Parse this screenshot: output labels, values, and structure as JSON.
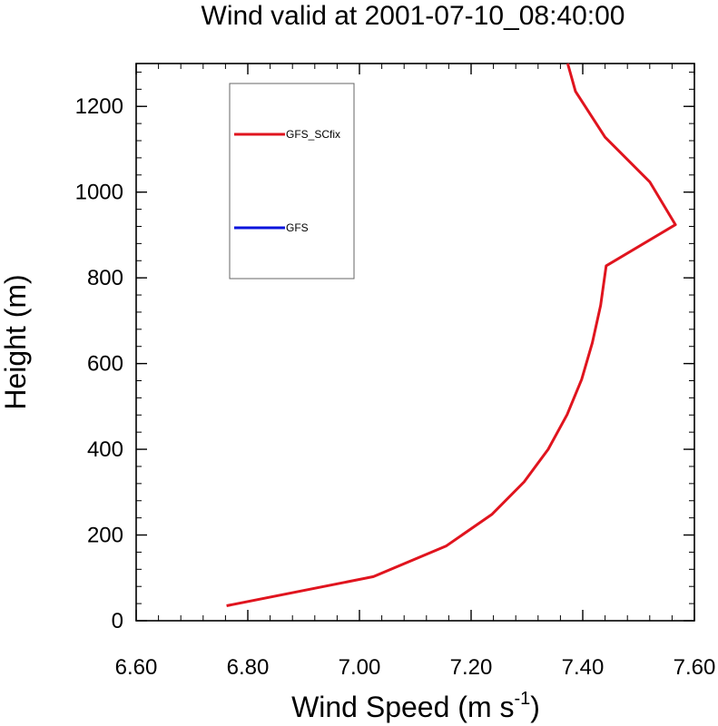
{
  "chart_data": {
    "type": "line",
    "title": "Wind valid at 2001-07-10_08:40:00",
    "xlabel": "Wind Speed (m s",
    "xlabel_sup": "-1",
    "xlabel_end": ")",
    "ylabel": "Height (m)",
    "xlim": [
      6.6,
      7.6
    ],
    "ylim": [
      0,
      1300
    ],
    "xticks": [
      "6.60",
      "6.80",
      "7.00",
      "7.20",
      "7.40",
      "7.60"
    ],
    "yticks": [
      "0",
      "200",
      "400",
      "600",
      "800",
      "1000",
      "1200"
    ],
    "legend_placement": "top-left",
    "series": [
      {
        "name": "GFS_SCfix",
        "color": "#e0141e",
        "points": [
          {
            "x": 6.762,
            "y": 35
          },
          {
            "x": 7.025,
            "y": 103
          },
          {
            "x": 7.155,
            "y": 174
          },
          {
            "x": 7.237,
            "y": 248
          },
          {
            "x": 7.295,
            "y": 324
          },
          {
            "x": 7.338,
            "y": 400
          },
          {
            "x": 7.372,
            "y": 481
          },
          {
            "x": 7.398,
            "y": 563
          },
          {
            "x": 7.417,
            "y": 648
          },
          {
            "x": 7.432,
            "y": 736
          },
          {
            "x": 7.442,
            "y": 828
          },
          {
            "x": 7.566,
            "y": 924
          },
          {
            "x": 7.52,
            "y": 1024
          },
          {
            "x": 7.44,
            "y": 1128
          },
          {
            "x": 7.387,
            "y": 1235
          },
          {
            "x": 7.373,
            "y": 1300
          }
        ]
      },
      {
        "name": "GFS",
        "color": "#0a14dc",
        "points": []
      }
    ]
  }
}
